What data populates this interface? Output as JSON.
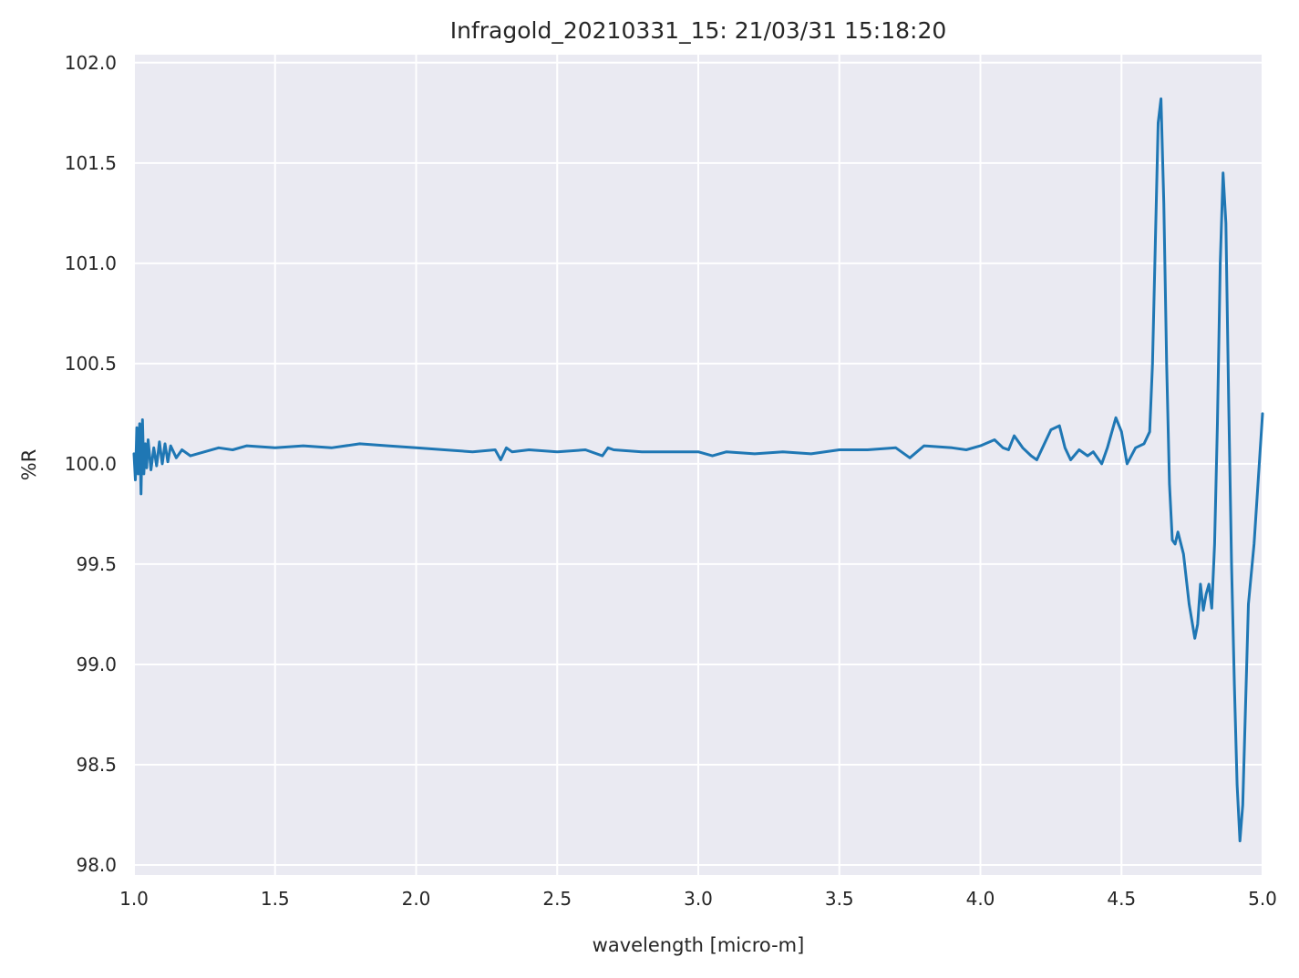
{
  "chart_data": {
    "type": "line",
    "title": "Infragold_20210331_15:  21/03/31 15:18:20",
    "xlabel": "wavelength [micro-m]",
    "ylabel": "%R",
    "xlim": [
      1.0,
      5.0
    ],
    "ylim": [
      97.95,
      102.04
    ],
    "grid": true,
    "line_color": "#1f77b4",
    "background_color": "#eaeaf2",
    "x_ticks": [
      "1.0",
      "1.5",
      "2.0",
      "2.5",
      "3.0",
      "3.5",
      "4.0",
      "4.5",
      "5.0"
    ],
    "y_ticks": [
      "98.0",
      "98.5",
      "99.0",
      "99.5",
      "100.0",
      "100.5",
      "101.0",
      "101.5",
      "102.0"
    ],
    "series": [
      {
        "x": [
          1.0,
          1.005,
          1.01,
          1.015,
          1.02,
          1.025,
          1.03,
          1.035,
          1.04,
          1.045,
          1.05,
          1.06,
          1.07,
          1.08,
          1.09,
          1.1,
          1.11,
          1.12,
          1.13,
          1.15,
          1.17,
          1.2,
          1.25,
          1.3,
          1.35,
          1.4,
          1.5,
          1.6,
          1.7,
          1.8,
          1.9,
          2.0,
          2.1,
          2.2,
          2.28,
          2.3,
          2.32,
          2.34,
          2.4,
          2.5,
          2.6,
          2.66,
          2.68,
          2.7,
          2.8,
          2.9,
          3.0,
          3.05,
          3.1,
          3.2,
          3.3,
          3.4,
          3.5,
          3.6,
          3.7,
          3.75,
          3.8,
          3.9,
          3.95,
          4.0,
          4.05,
          4.08,
          4.1,
          4.12,
          4.15,
          4.18,
          4.2,
          4.22,
          4.25,
          4.28,
          4.3,
          4.32,
          4.35,
          4.38,
          4.4,
          4.43,
          4.45,
          4.48,
          4.5,
          4.52,
          4.55,
          4.58,
          4.6,
          4.61,
          4.62,
          4.63,
          4.64,
          4.65,
          4.66,
          4.67,
          4.68,
          4.69,
          4.7,
          4.72,
          4.74,
          4.76,
          4.77,
          4.78,
          4.79,
          4.8,
          4.81,
          4.82,
          4.83,
          4.84,
          4.85,
          4.86,
          4.87,
          4.88,
          4.89,
          4.9,
          4.91,
          4.92,
          4.93,
          4.95,
          4.97,
          5.0
        ],
        "y": [
          100.05,
          99.92,
          100.18,
          99.95,
          100.2,
          99.85,
          100.22,
          99.95,
          100.1,
          99.98,
          100.12,
          99.97,
          100.08,
          99.99,
          100.11,
          100.0,
          100.1,
          100.01,
          100.09,
          100.03,
          100.07,
          100.04,
          100.06,
          100.08,
          100.07,
          100.09,
          100.08,
          100.09,
          100.08,
          100.1,
          100.09,
          100.08,
          100.07,
          100.06,
          100.07,
          100.02,
          100.08,
          100.06,
          100.07,
          100.06,
          100.07,
          100.04,
          100.08,
          100.07,
          100.06,
          100.06,
          100.06,
          100.04,
          100.06,
          100.05,
          100.06,
          100.05,
          100.07,
          100.07,
          100.08,
          100.03,
          100.09,
          100.08,
          100.07,
          100.09,
          100.12,
          100.08,
          100.07,
          100.14,
          100.08,
          100.04,
          100.02,
          100.08,
          100.17,
          100.19,
          100.08,
          100.02,
          100.07,
          100.04,
          100.06,
          100.0,
          100.08,
          100.23,
          100.16,
          100.0,
          100.08,
          100.1,
          100.16,
          100.5,
          101.1,
          101.7,
          101.82,
          101.3,
          100.5,
          99.9,
          99.62,
          99.6,
          99.66,
          99.55,
          99.3,
          99.13,
          99.2,
          99.4,
          99.27,
          99.35,
          99.4,
          99.28,
          99.6,
          100.2,
          101.0,
          101.45,
          101.2,
          100.3,
          99.5,
          98.9,
          98.4,
          98.12,
          98.3,
          99.3,
          99.6,
          100.25
        ]
      }
    ]
  }
}
